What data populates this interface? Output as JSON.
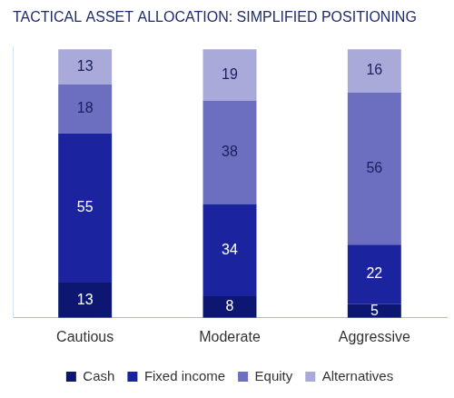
{
  "chart_data": {
    "type": "bar",
    "title": "TACTICAL ASSET ALLOCATION: SIMPLIFIED POSITIONING",
    "categories": [
      "Cautious",
      "Moderate",
      "Aggressive"
    ],
    "series": [
      {
        "name": "Cash",
        "color": "#0d1670",
        "values": [
          13,
          8,
          5
        ]
      },
      {
        "name": "Fixed income",
        "color": "#1b249e",
        "values": [
          55,
          34,
          22
        ]
      },
      {
        "name": "Equity",
        "color": "#6c6ec0",
        "values": [
          18,
          38,
          56
        ]
      },
      {
        "name": "Alternatives",
        "color": "#a9aad9",
        "values": [
          13,
          19,
          16
        ]
      }
    ],
    "ylim": [
      0,
      100
    ],
    "stacked": true,
    "data_labels": true,
    "grid": false,
    "legend": "bottom",
    "tick_labels": "x"
  }
}
